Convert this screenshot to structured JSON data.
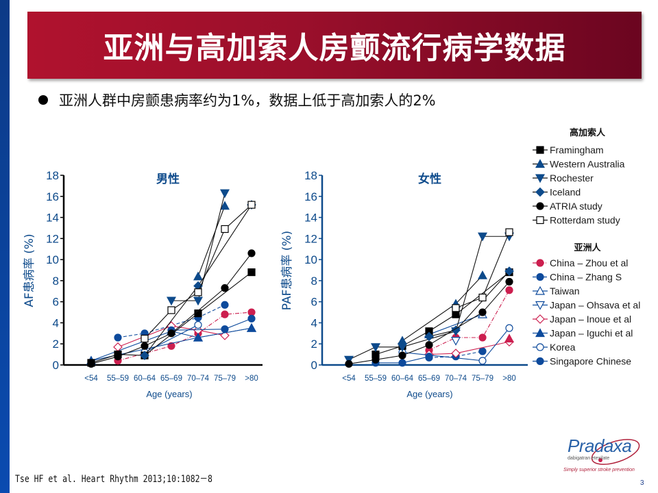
{
  "slide": {
    "title": "亚洲与高加索人房颤流行病学数据",
    "bullet": "亚洲人群中房颤患病率约为1%，数据上低于高加索人的2%",
    "citation": "Tse HF et al. Heart Rhythm 2013;10:1082－8",
    "page_number": "3",
    "logo": {
      "brand": "Pradaxa",
      "generic": "dabigatran etexilate",
      "tagline": "Simply superior stroke prevention"
    },
    "colors": {
      "title_banner": "#9a0f2b",
      "axis_blue": "#0d4a8b",
      "series_blue": "#0d4a9c",
      "series_red": "#cc1f4f",
      "series_black": "#000000"
    }
  },
  "legend": {
    "caucasian_heading": "高加索人",
    "asian_heading": "亚洲人"
  },
  "chart_data": [
    {
      "type": "line",
      "title": "男性",
      "xlabel": "Age (years)",
      "ylabel": "AF患病率 (%)",
      "categories": [
        "<54",
        "55–59",
        "60–64",
        "65–69",
        "70–74",
        "75–79",
        ">80"
      ],
      "ylim": [
        0,
        18
      ],
      "yticks": [
        0,
        2,
        4,
        6,
        8,
        10,
        12,
        14,
        16,
        18
      ],
      "legend_position": "right",
      "series": [
        {
          "name": "Framingham",
          "group": "caucasian",
          "marker": "square",
          "color": "#000000",
          "fill": "solid",
          "dash": "solid",
          "values": [
            0.2,
            1.0,
            0.9,
            null,
            4.9,
            null,
            8.8
          ]
        },
        {
          "name": "Western Australia",
          "group": "caucasian",
          "marker": "triangle-up",
          "color": "#0d4a8b",
          "fill": "solid",
          "dash": "solid",
          "values": [
            null,
            null,
            null,
            null,
            8.4,
            15.1,
            null
          ]
        },
        {
          "name": "Rochester",
          "group": "caucasian",
          "marker": "triangle-down",
          "color": "#0d4a8b",
          "fill": "solid",
          "dash": "solid",
          "values": [
            null,
            null,
            null,
            6.1,
            6.1,
            16.3,
            null
          ]
        },
        {
          "name": "Iceland",
          "group": "caucasian",
          "marker": "diamond",
          "color": "#0d4a8b",
          "fill": "solid",
          "dash": "solid",
          "values": [
            null,
            null,
            0.9,
            null,
            7.5,
            null,
            15.2
          ]
        },
        {
          "name": "ATRIA study",
          "group": "caucasian",
          "marker": "circle",
          "color": "#000000",
          "fill": "solid",
          "dash": "solid",
          "values": [
            0.1,
            0.8,
            1.8,
            3.0,
            null,
            7.3,
            10.6
          ]
        },
        {
          "name": "Rotterdam study",
          "group": "caucasian",
          "marker": "square",
          "color": "#000000",
          "fill": "open",
          "dash": "solid",
          "values": [
            null,
            null,
            2.5,
            5.2,
            6.9,
            12.9,
            15.2
          ]
        },
        {
          "name": "China – Zhou et al",
          "group": "asian",
          "marker": "circle",
          "color": "#cc1f4f",
          "fill": "solid",
          "dash": "dashdot",
          "values": [
            null,
            0.4,
            null,
            1.8,
            3.0,
            4.8,
            5.0
          ]
        },
        {
          "name": "China – Zhang S",
          "group": "asian",
          "marker": "circle",
          "color": "#0d4a9c",
          "fill": "solid",
          "dash": "dash",
          "values": [
            null,
            2.6,
            3.0,
            null,
            4.5,
            5.7,
            null
          ]
        },
        {
          "name": "Taiwan",
          "group": "asian",
          "marker": "triangle-up",
          "color": "#0d4a9c",
          "fill": "open",
          "dash": "solid",
          "values": [
            0.4,
            null,
            null,
            3.2,
            2.6,
            null,
            3.5
          ]
        },
        {
          "name": "Japan – Ohsava et al",
          "group": "asian",
          "marker": "triangle-down",
          "color": "#0d4a9c",
          "fill": "open",
          "dash": "solid",
          "values": [
            null,
            null,
            null,
            null,
            null,
            null,
            null
          ]
        },
        {
          "name": "Japan – Inoue et al",
          "group": "asian",
          "marker": "diamond",
          "color": "#cc1f4f",
          "fill": "open",
          "dash": "solid",
          "values": [
            null,
            1.7,
            null,
            3.7,
            3.3,
            2.8,
            null
          ]
        },
        {
          "name": "Japan – Iguchi et al",
          "group": "asian",
          "marker": "triangle-up",
          "color": "#0d4a9c",
          "fill": "solid",
          "dash": "solid",
          "values": [
            0.4,
            null,
            null,
            null,
            2.6,
            null,
            3.5
          ]
        },
        {
          "name": "Korea",
          "group": "asian",
          "marker": "circle",
          "color": "#0d4a9c",
          "fill": "open",
          "dash": "solid",
          "values": [
            null,
            null,
            1.2,
            null,
            3.8,
            null,
            null
          ]
        },
        {
          "name": "Singapore Chinese",
          "group": "asian",
          "marker": "circle",
          "color": "#0d4a9c",
          "fill": "solid",
          "dash": "solid",
          "values": [
            null,
            null,
            null,
            3.3,
            null,
            3.4,
            4.4
          ]
        }
      ]
    },
    {
      "type": "line",
      "title": "女性",
      "xlabel": "Age (years)",
      "ylabel": "PAF患病率 (%)",
      "categories": [
        "<54",
        "55–59",
        "60–64",
        "65–69",
        "70–74",
        "75–79",
        ">80"
      ],
      "ylim": [
        0,
        18
      ],
      "yticks": [
        0,
        2,
        4,
        6,
        8,
        10,
        12,
        14,
        16,
        18
      ],
      "legend_position": "right",
      "series": [
        {
          "name": "Framingham",
          "group": "caucasian",
          "marker": "square",
          "color": "#000000",
          "fill": "solid",
          "dash": "solid",
          "values": [
            null,
            1.0,
            1.8,
            3.2,
            4.8,
            null,
            8.8
          ]
        },
        {
          "name": "Western Australia",
          "group": "caucasian",
          "marker": "triangle-up",
          "color": "#0d4a8b",
          "fill": "solid",
          "dash": "solid",
          "values": [
            null,
            null,
            2.3,
            null,
            5.8,
            8.5,
            null
          ]
        },
        {
          "name": "Rochester",
          "group": "caucasian",
          "marker": "triangle-down",
          "color": "#0d4a8b",
          "fill": "solid",
          "dash": "solid",
          "values": [
            0.5,
            1.7,
            1.7,
            null,
            3.2,
            12.2,
            12.2
          ]
        },
        {
          "name": "Iceland",
          "group": "caucasian",
          "marker": "diamond",
          "color": "#0d4a8b",
          "fill": "solid",
          "dash": "solid",
          "values": [
            null,
            null,
            null,
            2.7,
            3.3,
            null,
            8.9
          ]
        },
        {
          "name": "ATRIA study",
          "group": "caucasian",
          "marker": "circle",
          "color": "#000000",
          "fill": "solid",
          "dash": "solid",
          "values": [
            0.1,
            0.5,
            0.9,
            1.9,
            null,
            5.0,
            7.9
          ]
        },
        {
          "name": "Rotterdam study",
          "group": "caucasian",
          "marker": "square",
          "color": "#000000",
          "fill": "open",
          "dash": "solid",
          "values": [
            null,
            null,
            null,
            null,
            5.4,
            6.4,
            12.6
          ]
        },
        {
          "name": "China – Zhou et al",
          "group": "asian",
          "marker": "circle",
          "color": "#cc1f4f",
          "fill": "solid",
          "dash": "dashdot",
          "values": [
            null,
            null,
            null,
            1.4,
            2.6,
            2.6,
            7.1
          ]
        },
        {
          "name": "China – Zhang S",
          "group": "asian",
          "marker": "circle",
          "color": "#0d4a9c",
          "fill": "solid",
          "dash": "dash",
          "values": [
            null,
            null,
            null,
            0.7,
            0.8,
            1.3,
            null
          ]
        },
        {
          "name": "Taiwan",
          "group": "asian",
          "marker": "triangle-up",
          "color": "#0d4a9c",
          "fill": "open",
          "dash": "solid",
          "values": [
            null,
            null,
            null,
            2.9,
            null,
            4.8,
            null
          ]
        },
        {
          "name": "Japan – Ohsava et al",
          "group": "asian",
          "marker": "triangle-down",
          "color": "#0d4a9c",
          "fill": "open",
          "dash": "solid",
          "values": [
            null,
            null,
            null,
            null,
            2.3,
            null,
            null
          ]
        },
        {
          "name": "Japan – Inoue et al",
          "group": "asian",
          "marker": "diamond",
          "color": "#cc1f4f",
          "fill": "open",
          "dash": "solid",
          "values": [
            null,
            null,
            null,
            1.0,
            1.1,
            null,
            2.2
          ]
        },
        {
          "name": "Japan – Iguchi et al",
          "group": "asian",
          "marker": "triangle-up",
          "color": "#cc1f4f",
          "fill": "solid",
          "dash": "solid",
          "values": [
            null,
            null,
            null,
            null,
            null,
            null,
            2.5
          ]
        },
        {
          "name": "Korea",
          "group": "asian",
          "marker": "circle",
          "color": "#0d4a9c",
          "fill": "open",
          "dash": "solid",
          "values": [
            null,
            null,
            1.2,
            null,
            null,
            0.4,
            3.5
          ]
        },
        {
          "name": "Singapore Chinese",
          "group": "asian",
          "marker": "circle",
          "color": "#0d4a9c",
          "fill": "solid",
          "dash": "solid",
          "values": [
            null,
            0.2,
            0.2,
            0.8,
            null,
            null,
            null
          ]
        }
      ]
    }
  ]
}
